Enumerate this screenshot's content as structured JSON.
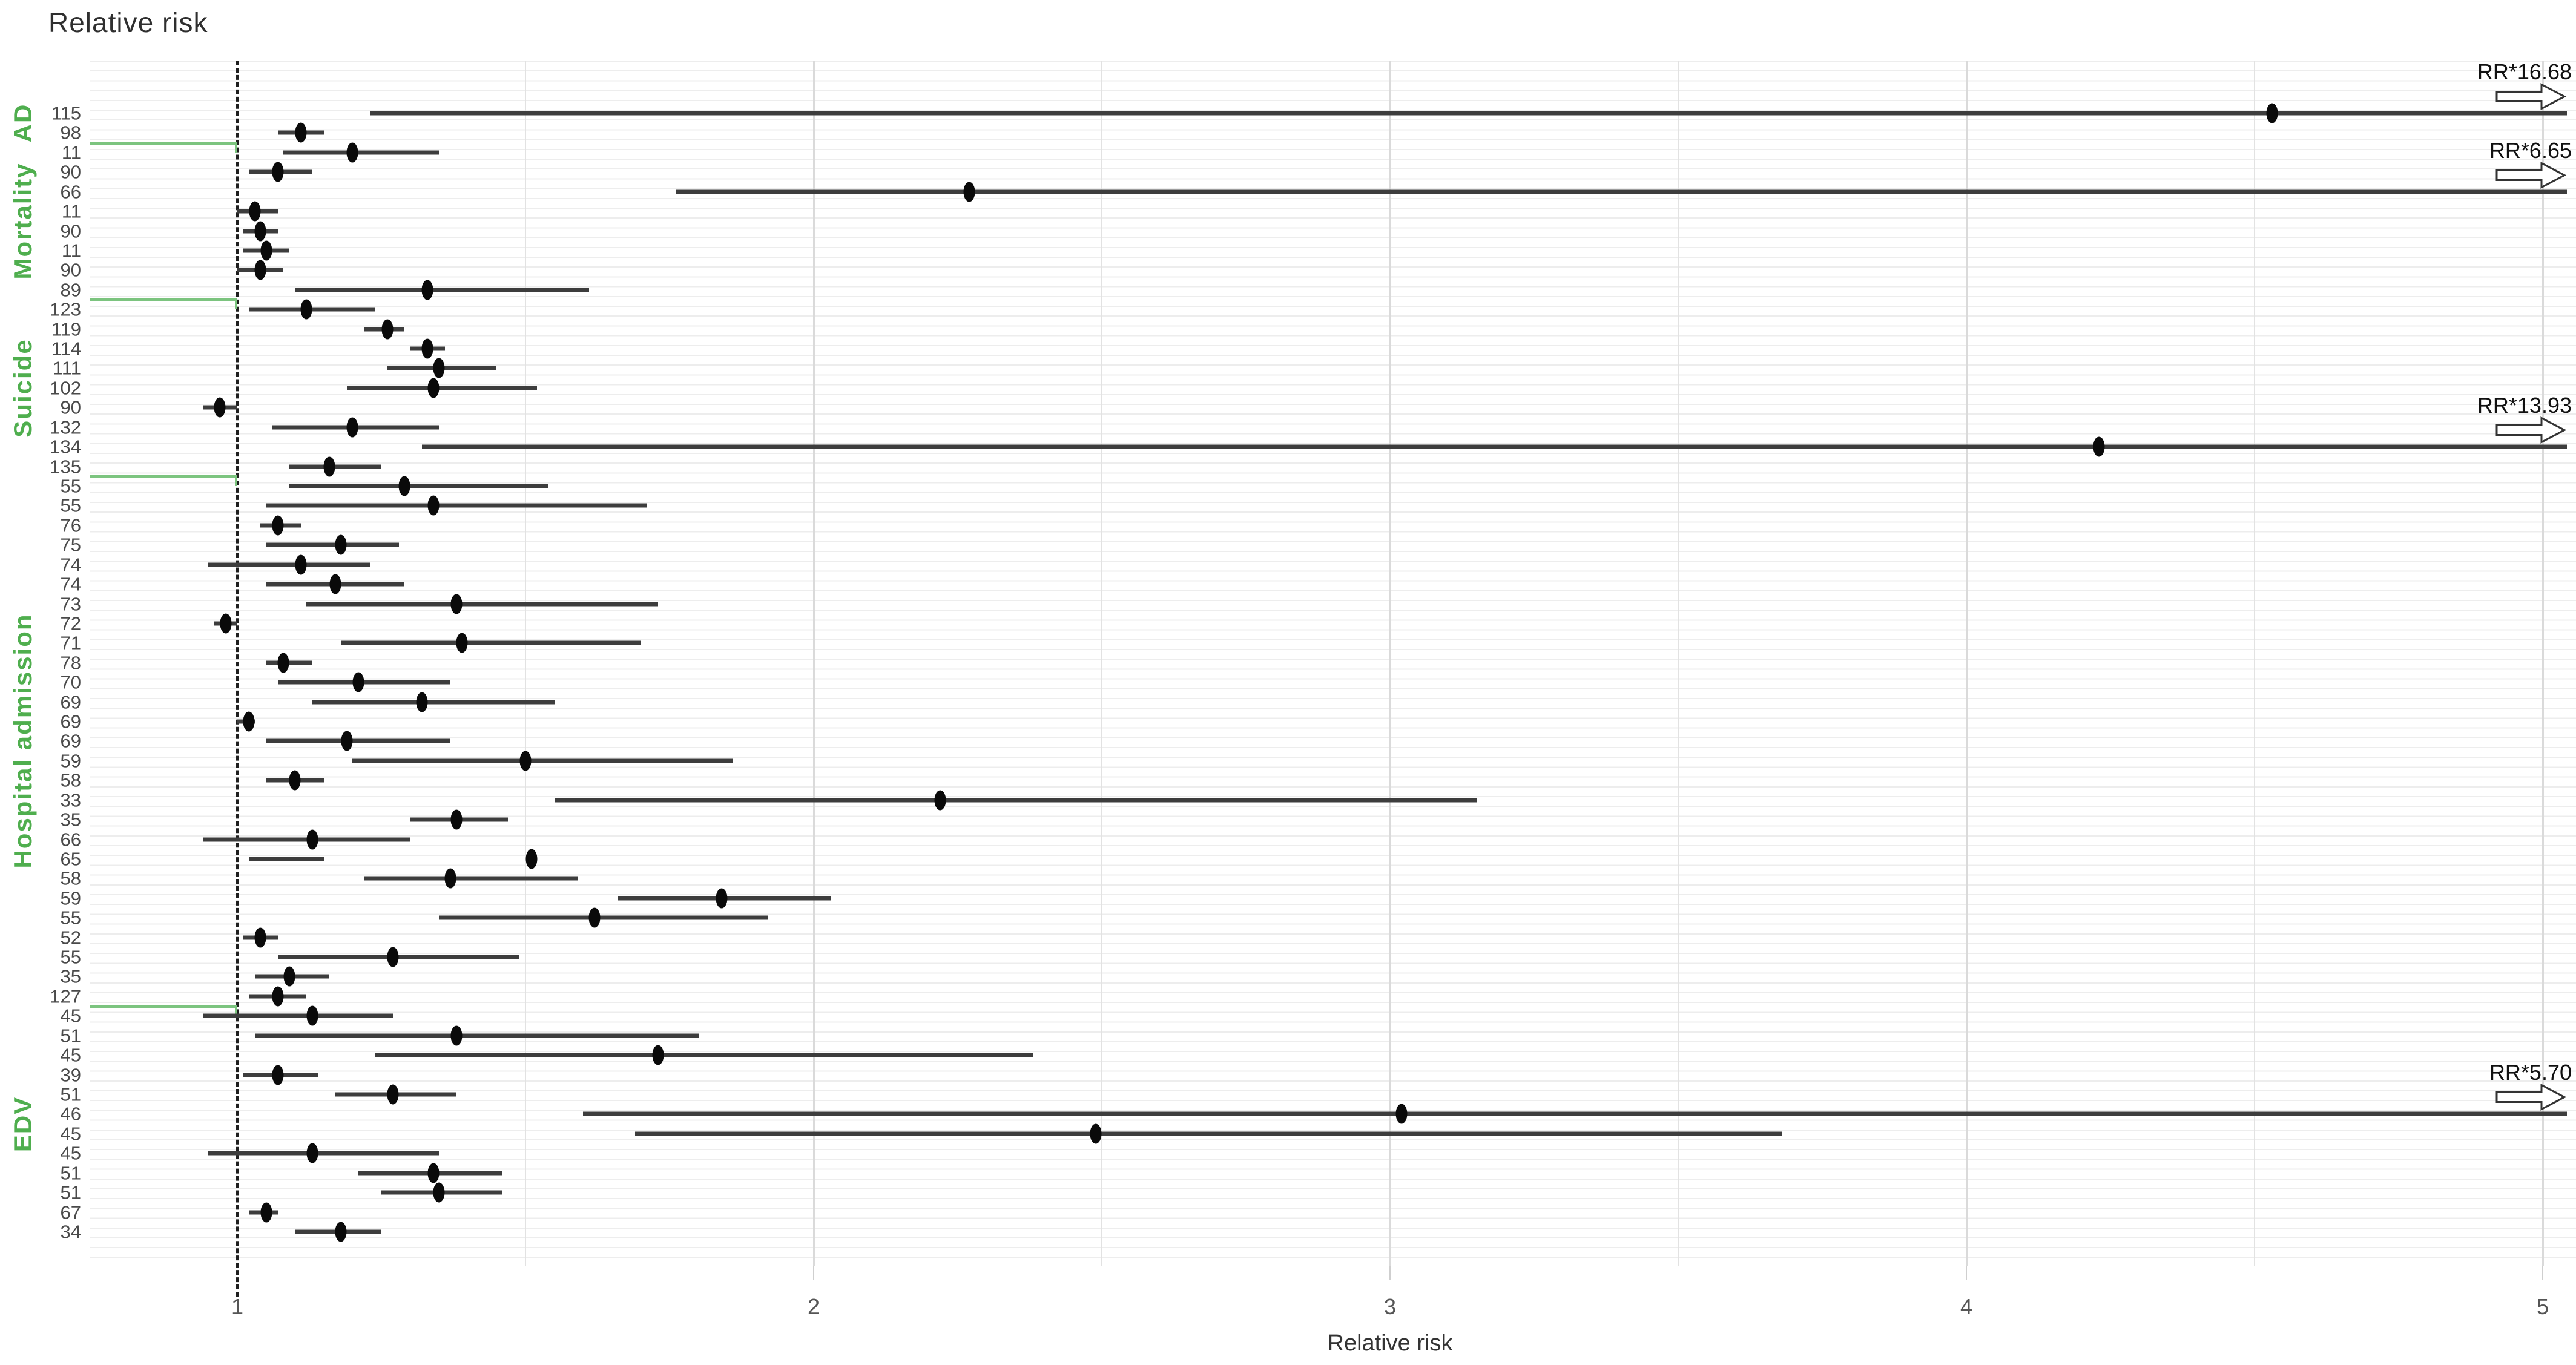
{
  "chart_data": {
    "type": "scatter",
    "subtype": "forest-plot",
    "title": "Relative risk",
    "xlabel": "Relative risk",
    "ylabel": "",
    "x_ticks": [
      1,
      2,
      3,
      4,
      5
    ],
    "x_minor_ticks": [
      1.5,
      2.5,
      3.5,
      4.5
    ],
    "xlim": [
      0.85,
      5.06
    ],
    "reference_line": 1,
    "grid": "light horizontal row stripes and light vertical gridlines at 0.5 intervals",
    "legend": "none",
    "groups": [
      {
        "label": "AD",
        "start_row": 1,
        "end_row": 2
      },
      {
        "label": "Mortality",
        "start_row": 3,
        "end_row": 10
      },
      {
        "label": "Suicide",
        "start_row": 11,
        "end_row": 19
      },
      {
        "label": "Hospital admission",
        "start_row": 20,
        "end_row": 46
      },
      {
        "label": "EDV",
        "start_row": 47,
        "end_row": 58
      }
    ],
    "separators_after_rows": [
      2,
      10,
      19,
      46
    ],
    "rows": [
      {
        "label": "115",
        "rr": 4.53,
        "lo": 1.23,
        "hi": 5.05,
        "arrow": true,
        "arrow_label": "RR*16.68"
      },
      {
        "label": "98",
        "rr": 1.11,
        "lo": 1.07,
        "hi": 1.15,
        "arrow": false
      },
      {
        "label": "11",
        "rr": 1.2,
        "lo": 1.08,
        "hi": 1.35,
        "arrow": false
      },
      {
        "label": "90",
        "rr": 1.07,
        "lo": 1.02,
        "hi": 1.13,
        "arrow": false
      },
      {
        "label": "66",
        "rr": 2.27,
        "lo": 1.76,
        "hi": 5.05,
        "arrow": true,
        "arrow_label": "RR*6.65"
      },
      {
        "label": "11",
        "rr": 1.03,
        "lo": 1.0,
        "hi": 1.07,
        "arrow": false
      },
      {
        "label": "90",
        "rr": 1.04,
        "lo": 1.01,
        "hi": 1.07,
        "arrow": false
      },
      {
        "label": "11",
        "rr": 1.05,
        "lo": 1.01,
        "hi": 1.09,
        "arrow": false
      },
      {
        "label": "90",
        "rr": 1.04,
        "lo": 1.0,
        "hi": 1.08,
        "arrow": false
      },
      {
        "label": "89",
        "rr": 1.33,
        "lo": 1.1,
        "hi": 1.61,
        "arrow": false
      },
      {
        "label": "123",
        "rr": 1.12,
        "lo": 1.02,
        "hi": 1.24,
        "arrow": false
      },
      {
        "label": "119",
        "rr": 1.26,
        "lo": 1.22,
        "hi": 1.29,
        "arrow": false
      },
      {
        "label": "114",
        "rr": 1.33,
        "lo": 1.3,
        "hi": 1.36,
        "arrow": false
      },
      {
        "label": "111",
        "rr": 1.35,
        "lo": 1.26,
        "hi": 1.45,
        "arrow": false
      },
      {
        "label": "102",
        "rr": 1.34,
        "lo": 1.19,
        "hi": 1.52,
        "arrow": false
      },
      {
        "label": "90",
        "rr": 0.97,
        "lo": 0.94,
        "hi": 1.0,
        "arrow": false
      },
      {
        "label": "132",
        "rr": 1.2,
        "lo": 1.06,
        "hi": 1.35,
        "arrow": false
      },
      {
        "label": "134",
        "rr": 4.23,
        "lo": 1.32,
        "hi": 5.05,
        "arrow": true,
        "arrow_label": "RR*13.93"
      },
      {
        "label": "135",
        "rr": 1.16,
        "lo": 1.09,
        "hi": 1.25,
        "arrow": false
      },
      {
        "label": "55",
        "rr": 1.29,
        "lo": 1.09,
        "hi": 1.54,
        "arrow": false
      },
      {
        "label": "55",
        "rr": 1.34,
        "lo": 1.05,
        "hi": 1.71,
        "arrow": false
      },
      {
        "label": "76",
        "rr": 1.07,
        "lo": 1.04,
        "hi": 1.11,
        "arrow": false
      },
      {
        "label": "75",
        "rr": 1.18,
        "lo": 1.05,
        "hi": 1.28,
        "arrow": false
      },
      {
        "label": "74",
        "rr": 1.11,
        "lo": 0.95,
        "hi": 1.23,
        "arrow": false
      },
      {
        "label": "74",
        "rr": 1.17,
        "lo": 1.05,
        "hi": 1.29,
        "arrow": false
      },
      {
        "label": "73",
        "rr": 1.38,
        "lo": 1.12,
        "hi": 1.73,
        "arrow": false
      },
      {
        "label": "72",
        "rr": 0.98,
        "lo": 0.96,
        "hi": 1.0,
        "arrow": false
      },
      {
        "label": "71",
        "rr": 1.39,
        "lo": 1.18,
        "hi": 1.7,
        "arrow": false
      },
      {
        "label": "78",
        "rr": 1.08,
        "lo": 1.05,
        "hi": 1.13,
        "arrow": false
      },
      {
        "label": "70",
        "rr": 1.21,
        "lo": 1.07,
        "hi": 1.37,
        "arrow": false
      },
      {
        "label": "69",
        "rr": 1.32,
        "lo": 1.13,
        "hi": 1.55,
        "arrow": false
      },
      {
        "label": "69",
        "rr": 1.02,
        "lo": 1.0,
        "hi": 1.03,
        "arrow": false
      },
      {
        "label": "69",
        "rr": 1.19,
        "lo": 1.05,
        "hi": 1.37,
        "arrow": false
      },
      {
        "label": "59",
        "rr": 1.5,
        "lo": 1.2,
        "hi": 1.86,
        "arrow": false
      },
      {
        "label": "58",
        "rr": 1.1,
        "lo": 1.05,
        "hi": 1.15,
        "arrow": false
      },
      {
        "label": "33",
        "rr": 2.22,
        "lo": 1.55,
        "hi": 3.15,
        "arrow": false
      },
      {
        "label": "35",
        "rr": 1.38,
        "lo": 1.3,
        "hi": 1.47,
        "arrow": false
      },
      {
        "label": "66",
        "rr": 1.13,
        "lo": 0.94,
        "hi": 1.3,
        "arrow": false
      },
      {
        "label": "65",
        "rr": 1.51,
        "lo": 1.02,
        "hi": 1.15,
        "arrow": false
      },
      {
        "label": "58",
        "rr": 1.37,
        "lo": 1.22,
        "hi": 1.59,
        "arrow": false
      },
      {
        "label": "59",
        "rr": 1.84,
        "lo": 1.66,
        "hi": 2.03,
        "arrow": false
      },
      {
        "label": "55",
        "rr": 1.62,
        "lo": 1.35,
        "hi": 1.92,
        "arrow": false
      },
      {
        "label": "52",
        "rr": 1.04,
        "lo": 1.01,
        "hi": 1.07,
        "arrow": false
      },
      {
        "label": "55",
        "rr": 1.27,
        "lo": 1.07,
        "hi": 1.49,
        "arrow": false
      },
      {
        "label": "35",
        "rr": 1.09,
        "lo": 1.03,
        "hi": 1.16,
        "arrow": false
      },
      {
        "label": "127",
        "rr": 1.07,
        "lo": 1.02,
        "hi": 1.12,
        "arrow": false
      },
      {
        "label": "45",
        "rr": 1.13,
        "lo": 0.94,
        "hi": 1.27,
        "arrow": false
      },
      {
        "label": "51",
        "rr": 1.38,
        "lo": 1.03,
        "hi": 1.8,
        "arrow": false
      },
      {
        "label": "45",
        "rr": 1.73,
        "lo": 1.24,
        "hi": 2.38,
        "arrow": false
      },
      {
        "label": "39",
        "rr": 1.07,
        "lo": 1.01,
        "hi": 1.14,
        "arrow": false
      },
      {
        "label": "51",
        "rr": 1.27,
        "lo": 1.17,
        "hi": 1.38,
        "arrow": false
      },
      {
        "label": "46",
        "rr": 3.02,
        "lo": 1.6,
        "hi": 5.05,
        "arrow": true,
        "arrow_label": "RR*5.70"
      },
      {
        "label": "45",
        "rr": 2.49,
        "lo": 1.69,
        "hi": 3.68,
        "arrow": false
      },
      {
        "label": "45",
        "rr": 1.13,
        "lo": 0.95,
        "hi": 1.35,
        "arrow": false
      },
      {
        "label": "51",
        "rr": 1.34,
        "lo": 1.21,
        "hi": 1.46,
        "arrow": false
      },
      {
        "label": "51",
        "rr": 1.35,
        "lo": 1.25,
        "hi": 1.46,
        "arrow": false
      },
      {
        "label": "67",
        "rr": 1.05,
        "lo": 1.02,
        "hi": 1.07,
        "arrow": false
      },
      {
        "label": "34",
        "rr": 1.18,
        "lo": 1.1,
        "hi": 1.25,
        "arrow": false
      }
    ],
    "colors": {
      "facet_label_green": "#4fae4e",
      "separator_green": "#7cc47f",
      "ci_bar": "#3d3d3d",
      "dot": "#0a0a0a",
      "reference_line": "#1f1f1f",
      "gridline": "#e2e2e2",
      "row_stripe": "#ededed",
      "text_dark": "#2f2f2f",
      "text_axis": "#555555"
    }
  }
}
